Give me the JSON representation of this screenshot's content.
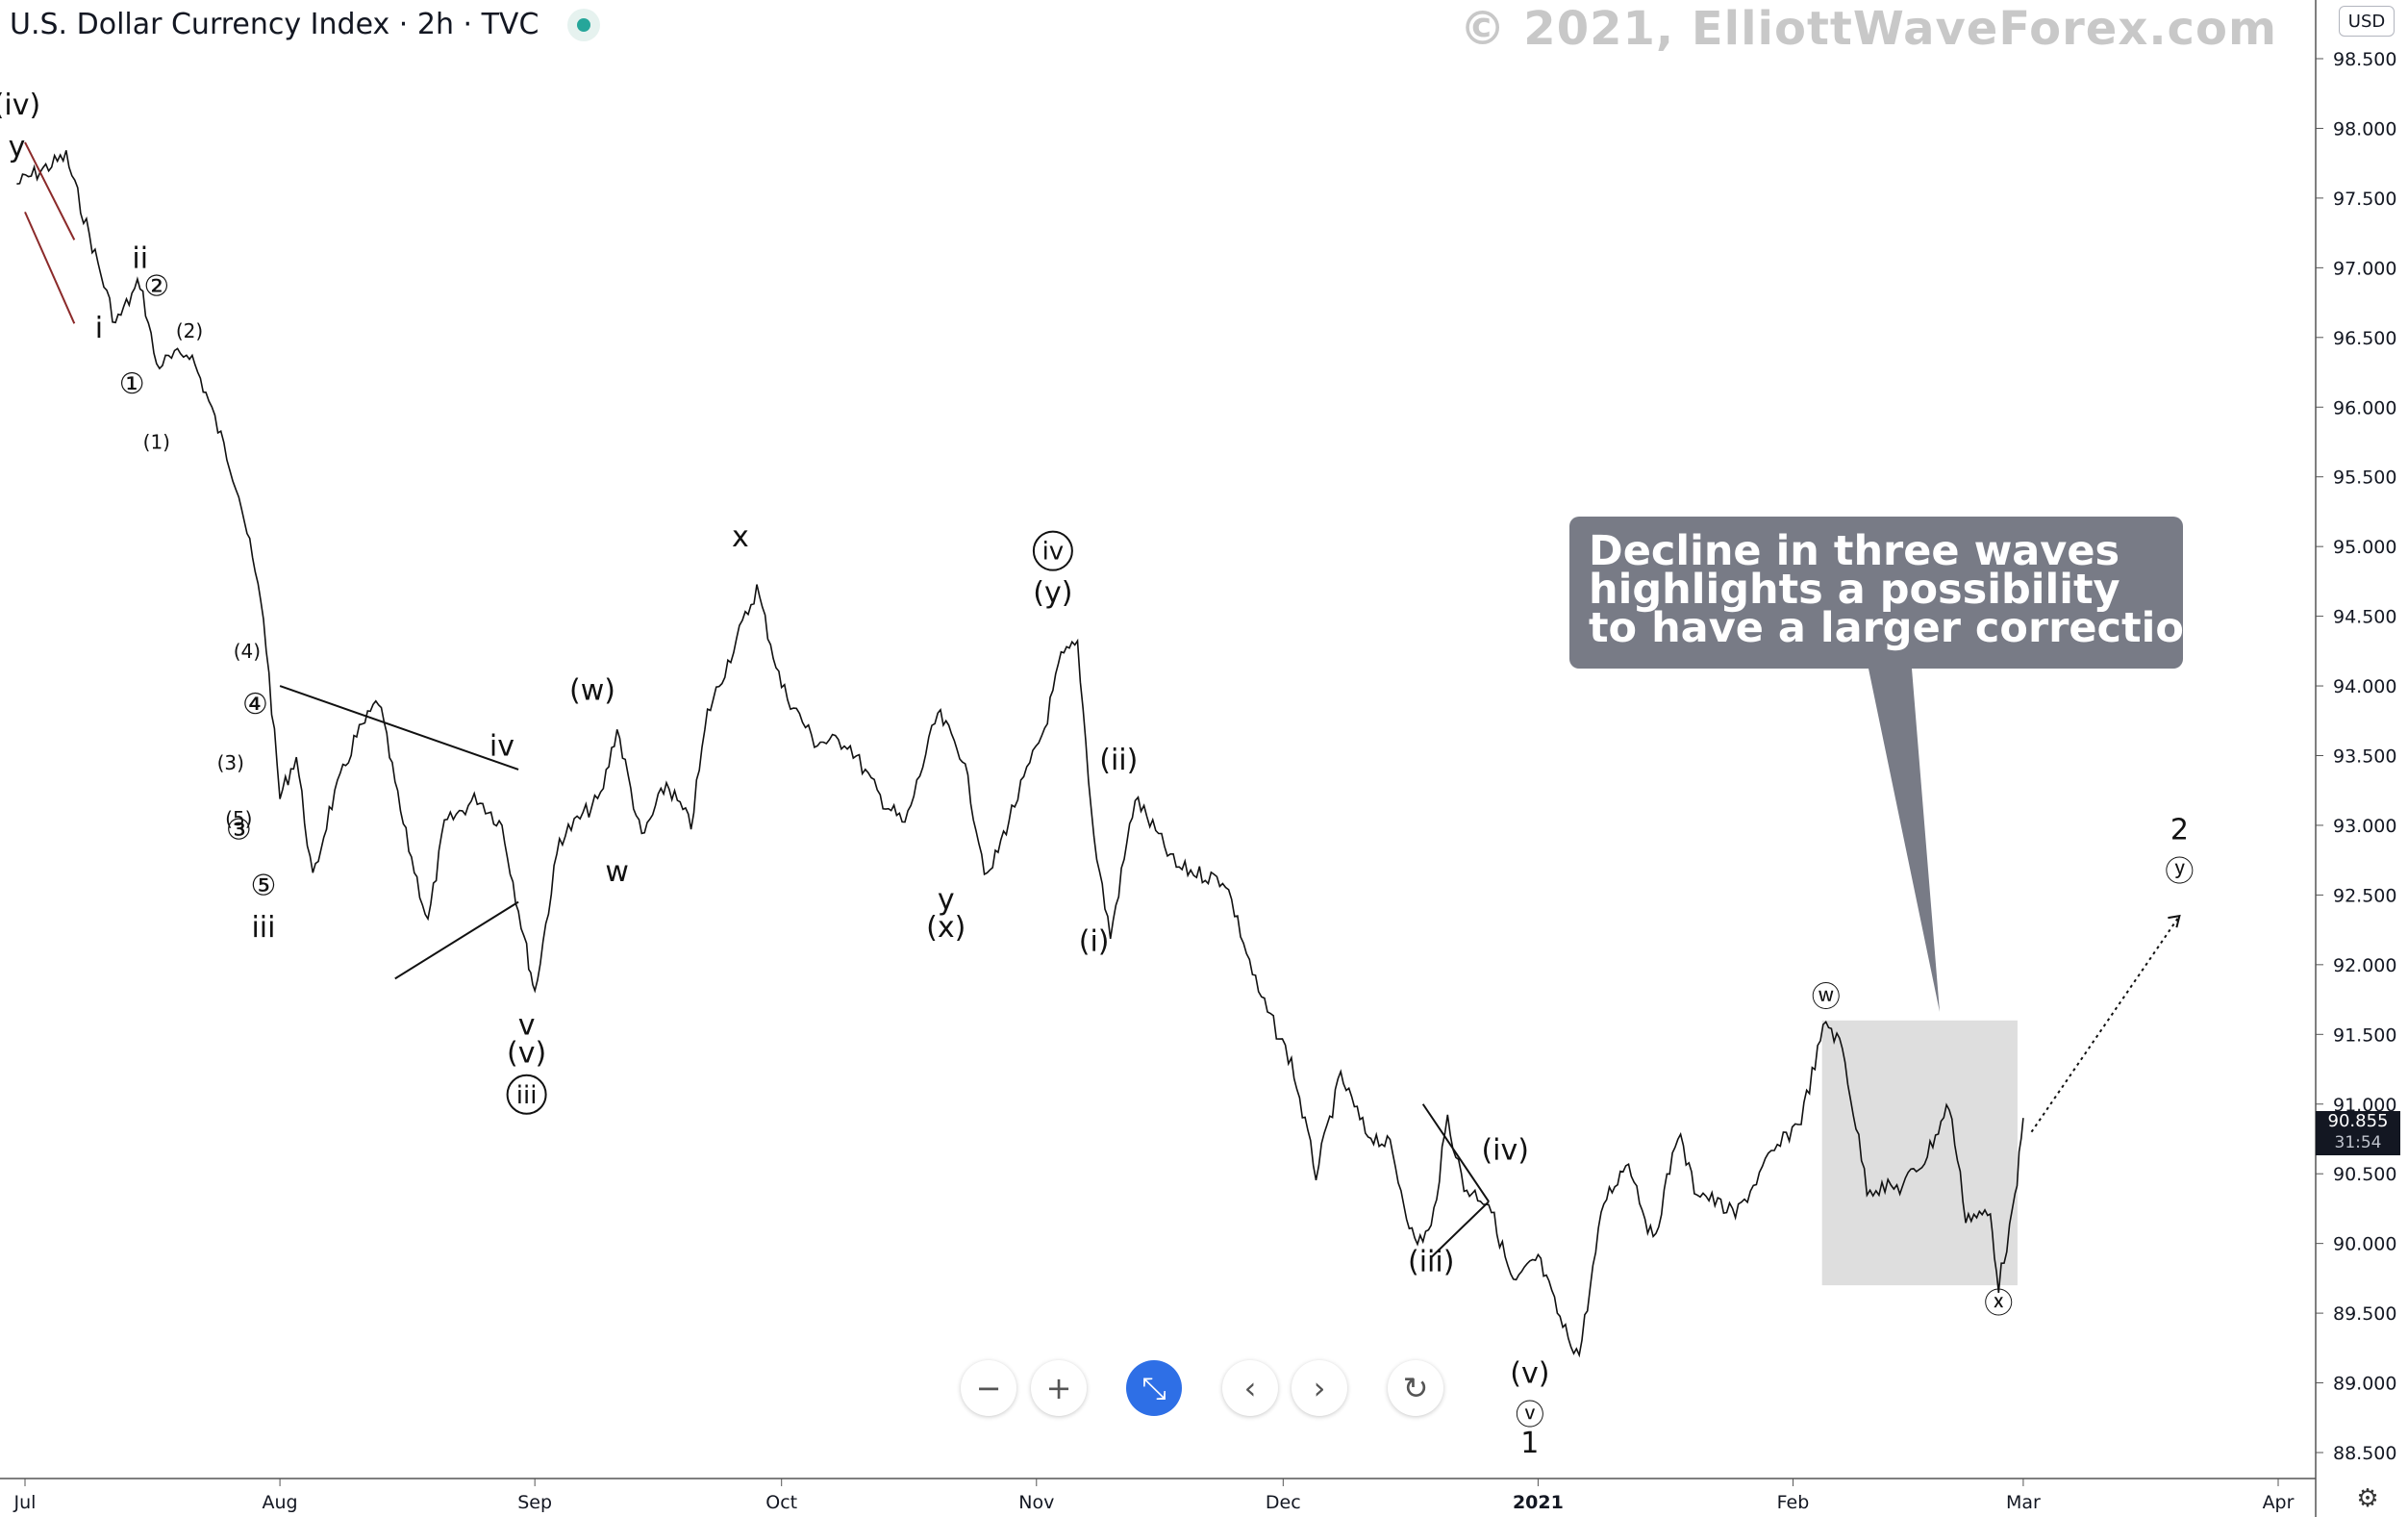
{
  "header": {
    "symbol": "U.S. Dollar Currency Index · 2h · TVC",
    "watermark": "© 2021, ElliottWaveForex.com",
    "currency_button": "USD",
    "status_dot_color": "#26a69a"
  },
  "price_tag": {
    "value": "90.855",
    "countdown": "31:54"
  },
  "callout": {
    "line1": "Decline in three waves",
    "line2": "highlights a possibility",
    "line3": "to have a larger correction"
  },
  "toolbar": {
    "zoom_out": "−",
    "zoom_in": "+",
    "reset": "⤡",
    "scroll_left": "‹",
    "scroll_right": "›",
    "refresh": "↻"
  },
  "chart_data": {
    "type": "line",
    "x_ticks": [
      "Jul",
      "Aug",
      "Sep",
      "Oct",
      "Nov",
      "Dec",
      "2021",
      "Feb",
      "Mar",
      "Apr"
    ],
    "y_ticks": [
      "98.500",
      "98.000",
      "97.500",
      "97.000",
      "96.500",
      "96.000",
      "95.500",
      "95.000",
      "94.500",
      "94.000",
      "93.500",
      "93.000",
      "92.500",
      "92.000",
      "91.500",
      "91.000",
      "90.500",
      "90.000",
      "89.500",
      "89.000",
      "88.500"
    ],
    "ylim": [
      88.5,
      98.5
    ],
    "series": [
      {
        "points": [
          [
            "2020-06-30",
            97.6
          ],
          [
            "2020-07-06",
            97.8
          ],
          [
            "2020-07-12",
            96.6
          ],
          [
            "2020-07-15",
            96.9
          ],
          [
            "2020-07-17",
            96.3
          ],
          [
            "2020-07-21",
            96.4
          ],
          [
            "2020-07-23",
            96.1
          ],
          [
            "2020-07-27",
            95.4
          ],
          [
            "2020-07-30",
            94.5
          ],
          [
            "2020-08-01",
            93.2
          ],
          [
            "2020-08-03",
            93.5
          ],
          [
            "2020-08-05",
            92.6
          ],
          [
            "2020-08-07",
            93.1
          ],
          [
            "2020-08-10",
            93.6
          ],
          [
            "2020-08-13",
            93.9
          ],
          [
            "2020-08-16",
            93.0
          ],
          [
            "2020-08-19",
            92.3
          ],
          [
            "2020-08-21",
            93.0
          ],
          [
            "2020-08-25",
            93.2
          ],
          [
            "2020-08-28",
            93.0
          ],
          [
            "2020-08-31",
            92.1
          ],
          [
            "2020-09-01",
            91.8
          ],
          [
            "2020-09-04",
            92.9
          ],
          [
            "2020-09-09",
            93.2
          ],
          [
            "2020-09-11",
            93.7
          ],
          [
            "2020-09-14",
            92.9
          ],
          [
            "2020-09-17",
            93.3
          ],
          [
            "2020-09-20",
            93.0
          ],
          [
            "2020-09-22",
            93.8
          ],
          [
            "2020-09-28",
            94.7
          ],
          [
            "2020-10-01",
            94.0
          ],
          [
            "2020-10-05",
            93.6
          ],
          [
            "2020-10-09",
            93.6
          ],
          [
            "2020-10-13",
            93.2
          ],
          [
            "2020-10-16",
            93.0
          ],
          [
            "2020-10-20",
            93.8
          ],
          [
            "2020-10-23",
            93.5
          ],
          [
            "2020-10-26",
            92.6
          ],
          [
            "2020-10-29",
            93.1
          ],
          [
            "2020-11-02",
            93.7
          ],
          [
            "2020-11-04",
            94.2
          ],
          [
            "2020-11-06",
            94.3
          ],
          [
            "2020-11-08",
            92.9
          ],
          [
            "2020-11-10",
            92.2
          ],
          [
            "2020-11-13",
            93.2
          ],
          [
            "2020-11-18",
            92.7
          ],
          [
            "2020-11-24",
            92.6
          ],
          [
            "2020-11-28",
            91.8
          ],
          [
            "2020-12-02",
            91.3
          ],
          [
            "2020-12-05",
            90.5
          ],
          [
            "2020-12-08",
            91.2
          ],
          [
            "2020-12-11",
            90.8
          ],
          [
            "2020-12-14",
            90.7
          ],
          [
            "2020-12-17",
            90.0
          ],
          [
            "2020-12-19",
            90.1
          ],
          [
            "2020-12-21",
            90.9
          ],
          [
            "2020-12-23",
            90.4
          ],
          [
            "2020-12-26",
            90.3
          ],
          [
            "2020-12-29",
            89.7
          ],
          [
            "2021-01-01",
            89.9
          ],
          [
            "2021-01-04",
            89.4
          ],
          [
            "2021-01-06",
            89.2
          ],
          [
            "2021-01-09",
            90.3
          ],
          [
            "2021-01-12",
            90.6
          ],
          [
            "2021-01-15",
            90.0
          ],
          [
            "2021-01-18",
            90.8
          ],
          [
            "2021-01-20",
            90.4
          ],
          [
            "2021-01-25",
            90.2
          ],
          [
            "2021-01-29",
            90.6
          ],
          [
            "2021-02-02",
            90.9
          ],
          [
            "2021-02-05",
            91.6
          ],
          [
            "2021-02-07",
            91.4
          ],
          [
            "2021-02-10",
            90.4
          ],
          [
            "2021-02-14",
            90.4
          ],
          [
            "2021-02-17",
            90.6
          ],
          [
            "2021-02-20",
            91.0
          ],
          [
            "2021-02-22",
            90.2
          ],
          [
            "2021-02-25",
            90.2
          ],
          [
            "2021-02-26",
            89.7
          ],
          [
            "2021-02-28",
            90.3
          ],
          [
            "2021-03-01",
            90.9
          ]
        ]
      }
    ],
    "wave_labels": [
      [
        "(iv)",
        "2020-06-30",
        98.1,
        "above"
      ],
      [
        "y",
        "2020-06-30",
        97.8,
        "above"
      ],
      [
        "i",
        "2020-07-10",
        96.5,
        "below"
      ],
      [
        "ii",
        "2020-07-15",
        97.0,
        "above"
      ],
      [
        "①",
        "2020-07-14",
        96.1,
        "below"
      ],
      [
        "②",
        "2020-07-17",
        96.8,
        "plain"
      ],
      [
        "(2)",
        "2020-07-21",
        96.5,
        "plain"
      ],
      [
        "(1)",
        "2020-07-17",
        95.7,
        "plain"
      ],
      [
        "(4)",
        "2020-07-28",
        94.2,
        "plain"
      ],
      [
        "④",
        "2020-07-29",
        93.8,
        "plain"
      ],
      [
        "(3)",
        "2020-07-26",
        93.4,
        "plain"
      ],
      [
        "(5)",
        "2020-07-27",
        93.0,
        "plain"
      ],
      [
        "③",
        "2020-07-27",
        92.9,
        "plain"
      ],
      [
        "⑤",
        "2020-07-30",
        92.5,
        "plain"
      ],
      [
        "iii",
        "2020-07-30",
        92.2,
        "plain"
      ],
      [
        "iv",
        "2020-08-28",
        93.5,
        "plain"
      ],
      [
        "v",
        "2020-08-31",
        91.5,
        "plain"
      ],
      [
        "(v)",
        "2020-08-31",
        91.3,
        "plain"
      ],
      [
        "ⓘⓘⓘ",
        "2020-08-31",
        91.0,
        "plain"
      ],
      [
        "(w)",
        "2020-09-08",
        93.9,
        "plain"
      ],
      [
        "w",
        "2020-09-11",
        92.6,
        "plain"
      ],
      [
        "x",
        "2020-09-26",
        95.0,
        "plain"
      ],
      [
        "y",
        "2020-10-21",
        92.4,
        "plain"
      ],
      [
        "(x)",
        "2020-10-21",
        92.2,
        "plain"
      ],
      [
        "ⓘⓥ",
        "2020-11-03",
        94.9,
        "plain"
      ],
      [
        "(y)",
        "2020-11-03",
        94.6,
        "plain"
      ],
      [
        "(i)",
        "2020-11-08",
        92.1,
        "plain"
      ],
      [
        "(ii)",
        "2020-11-11",
        93.4,
        "plain"
      ],
      [
        "(iii)",
        "2020-12-19",
        89.8,
        "plain"
      ],
      [
        "(iv)",
        "2020-12-28",
        90.6,
        "plain"
      ],
      [
        "(v)",
        "2020-12-31",
        89.0,
        "plain"
      ],
      [
        "ⓥ",
        "2020-12-31",
        88.7,
        "plain"
      ],
      [
        "1",
        "2020-12-31",
        88.5,
        "plain"
      ],
      [
        "ⓦ",
        "2021-02-05",
        91.7,
        "plain"
      ],
      [
        "ⓧ",
        "2021-02-26",
        89.5,
        "plain"
      ],
      [
        "2",
        "2021-03-20",
        92.9,
        "plain"
      ],
      [
        "ⓨ",
        "2021-03-20",
        92.6,
        "plain"
      ]
    ]
  }
}
